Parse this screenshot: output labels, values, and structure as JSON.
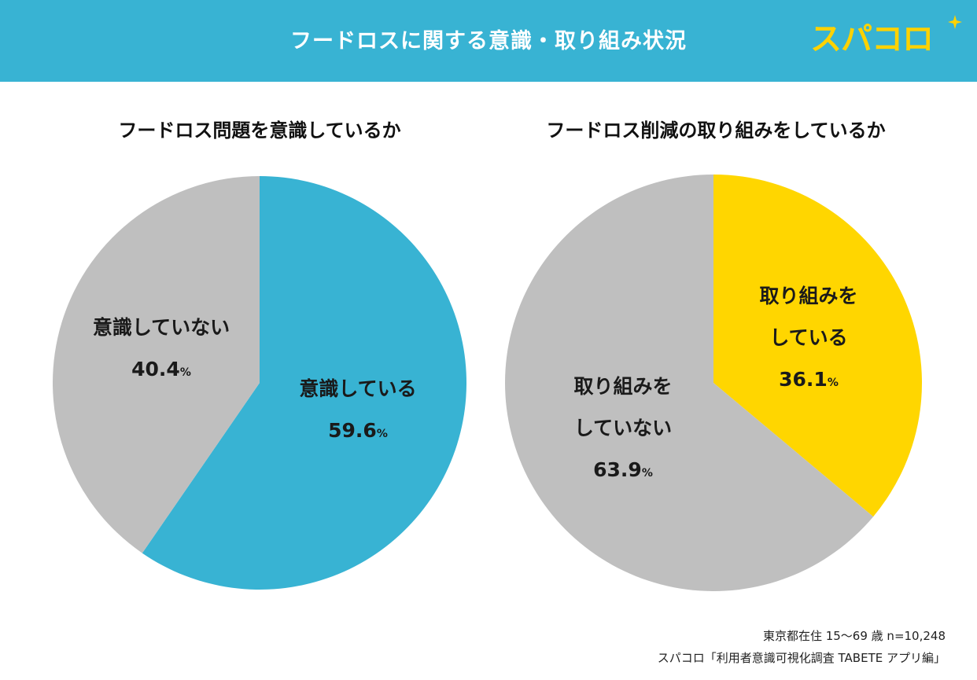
{
  "header": {
    "title": "フードロスに関する意識・取り組み状況",
    "logo_text": "スパコロ",
    "bg_color": "#38b3d3",
    "logo_color": "#ffd200",
    "star_icon": "sparkle-icon"
  },
  "chart_data": [
    {
      "type": "pie",
      "title": "フードロス問題を意識しているか",
      "slices": [
        {
          "label_lines": [
            "意識している"
          ],
          "value": 59.6,
          "value_text": "59.6",
          "unit": "%",
          "color": "#38b3d3"
        },
        {
          "label_lines": [
            "意識していない"
          ],
          "value": 40.4,
          "value_text": "40.4",
          "unit": "%",
          "color": "#bfbfbf"
        }
      ]
    },
    {
      "type": "pie",
      "title": "フードロス削減の取り組みをしているか",
      "slices": [
        {
          "label_lines": [
            "取り組みを",
            "している"
          ],
          "value": 36.1,
          "value_text": "36.1",
          "unit": "%",
          "color": "#ffd600"
        },
        {
          "label_lines": [
            "取り組みを",
            "していない"
          ],
          "value": 63.9,
          "value_text": "63.9",
          "unit": "%",
          "color": "#bfbfbf"
        }
      ]
    }
  ],
  "footer": {
    "line1": "東京都在住 15～69 歳 n=10,248",
    "line2": "スパコロ「利用者意識可視化調査 TABETE アプリ編」"
  }
}
